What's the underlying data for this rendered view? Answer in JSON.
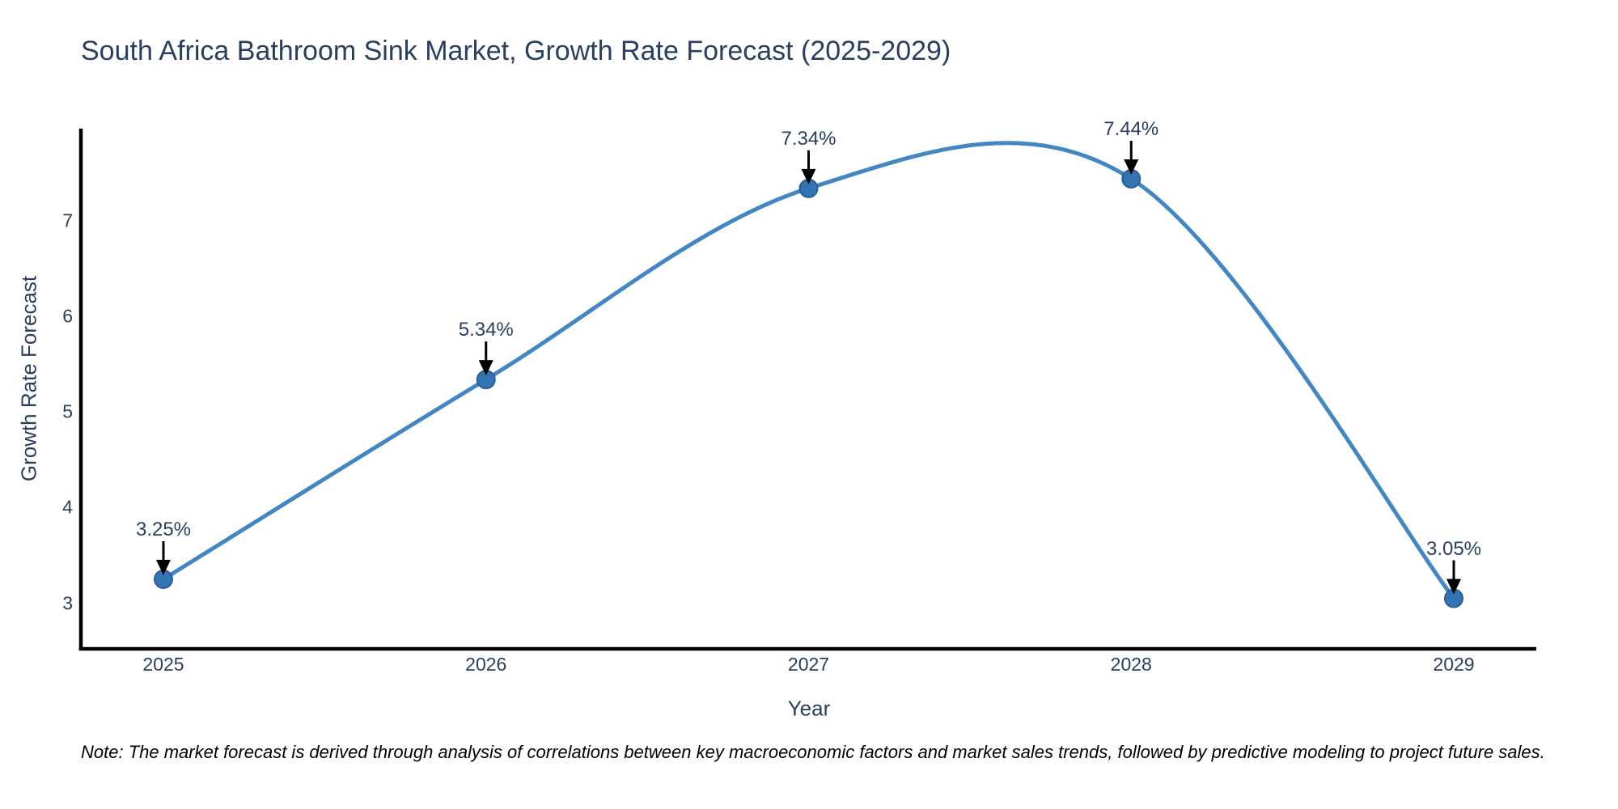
{
  "title": "South Africa Bathroom Sink Market, Growth Rate Forecast (2025-2029)",
  "note": "Note: The market forecast is derived through analysis of correlations between key macroeconomic factors and market sales trends, followed by predictive modeling to project future sales.",
  "chart_data": {
    "type": "line",
    "line_shape": "spline",
    "title": "South Africa Bathroom Sink Market, Growth Rate Forecast (2025-2029)",
    "xlabel": "Year",
    "ylabel": "Growth Rate Forecast",
    "categories": [
      "2025",
      "2026",
      "2027",
      "2028",
      "2029"
    ],
    "x": [
      2025,
      2026,
      2027,
      2028,
      2029
    ],
    "values": [
      3.25,
      5.34,
      7.34,
      7.44,
      3.05
    ],
    "point_labels": [
      "3.25%",
      "5.34%",
      "7.34%",
      "7.44%",
      "3.05%"
    ],
    "y_ticks": [
      3,
      4,
      5,
      6,
      7
    ],
    "y_tick_labels": [
      "3",
      "4",
      "5",
      "6",
      "7"
    ],
    "ylim": [
      2.54,
      7.97
    ],
    "xlim": [
      2024.74,
      2029.26
    ],
    "grid": false,
    "legend": "none",
    "annotations": "black arrows pointing down from each percentage label to its data point"
  },
  "colors": {
    "line": "#4286c3",
    "marker": "#3474b3",
    "marker_edge": "#2a5f96",
    "arrow": "#000000",
    "axis": "#000000",
    "text": "#2a3f5f",
    "note_text": "#000000",
    "background": "#ffffff"
  }
}
